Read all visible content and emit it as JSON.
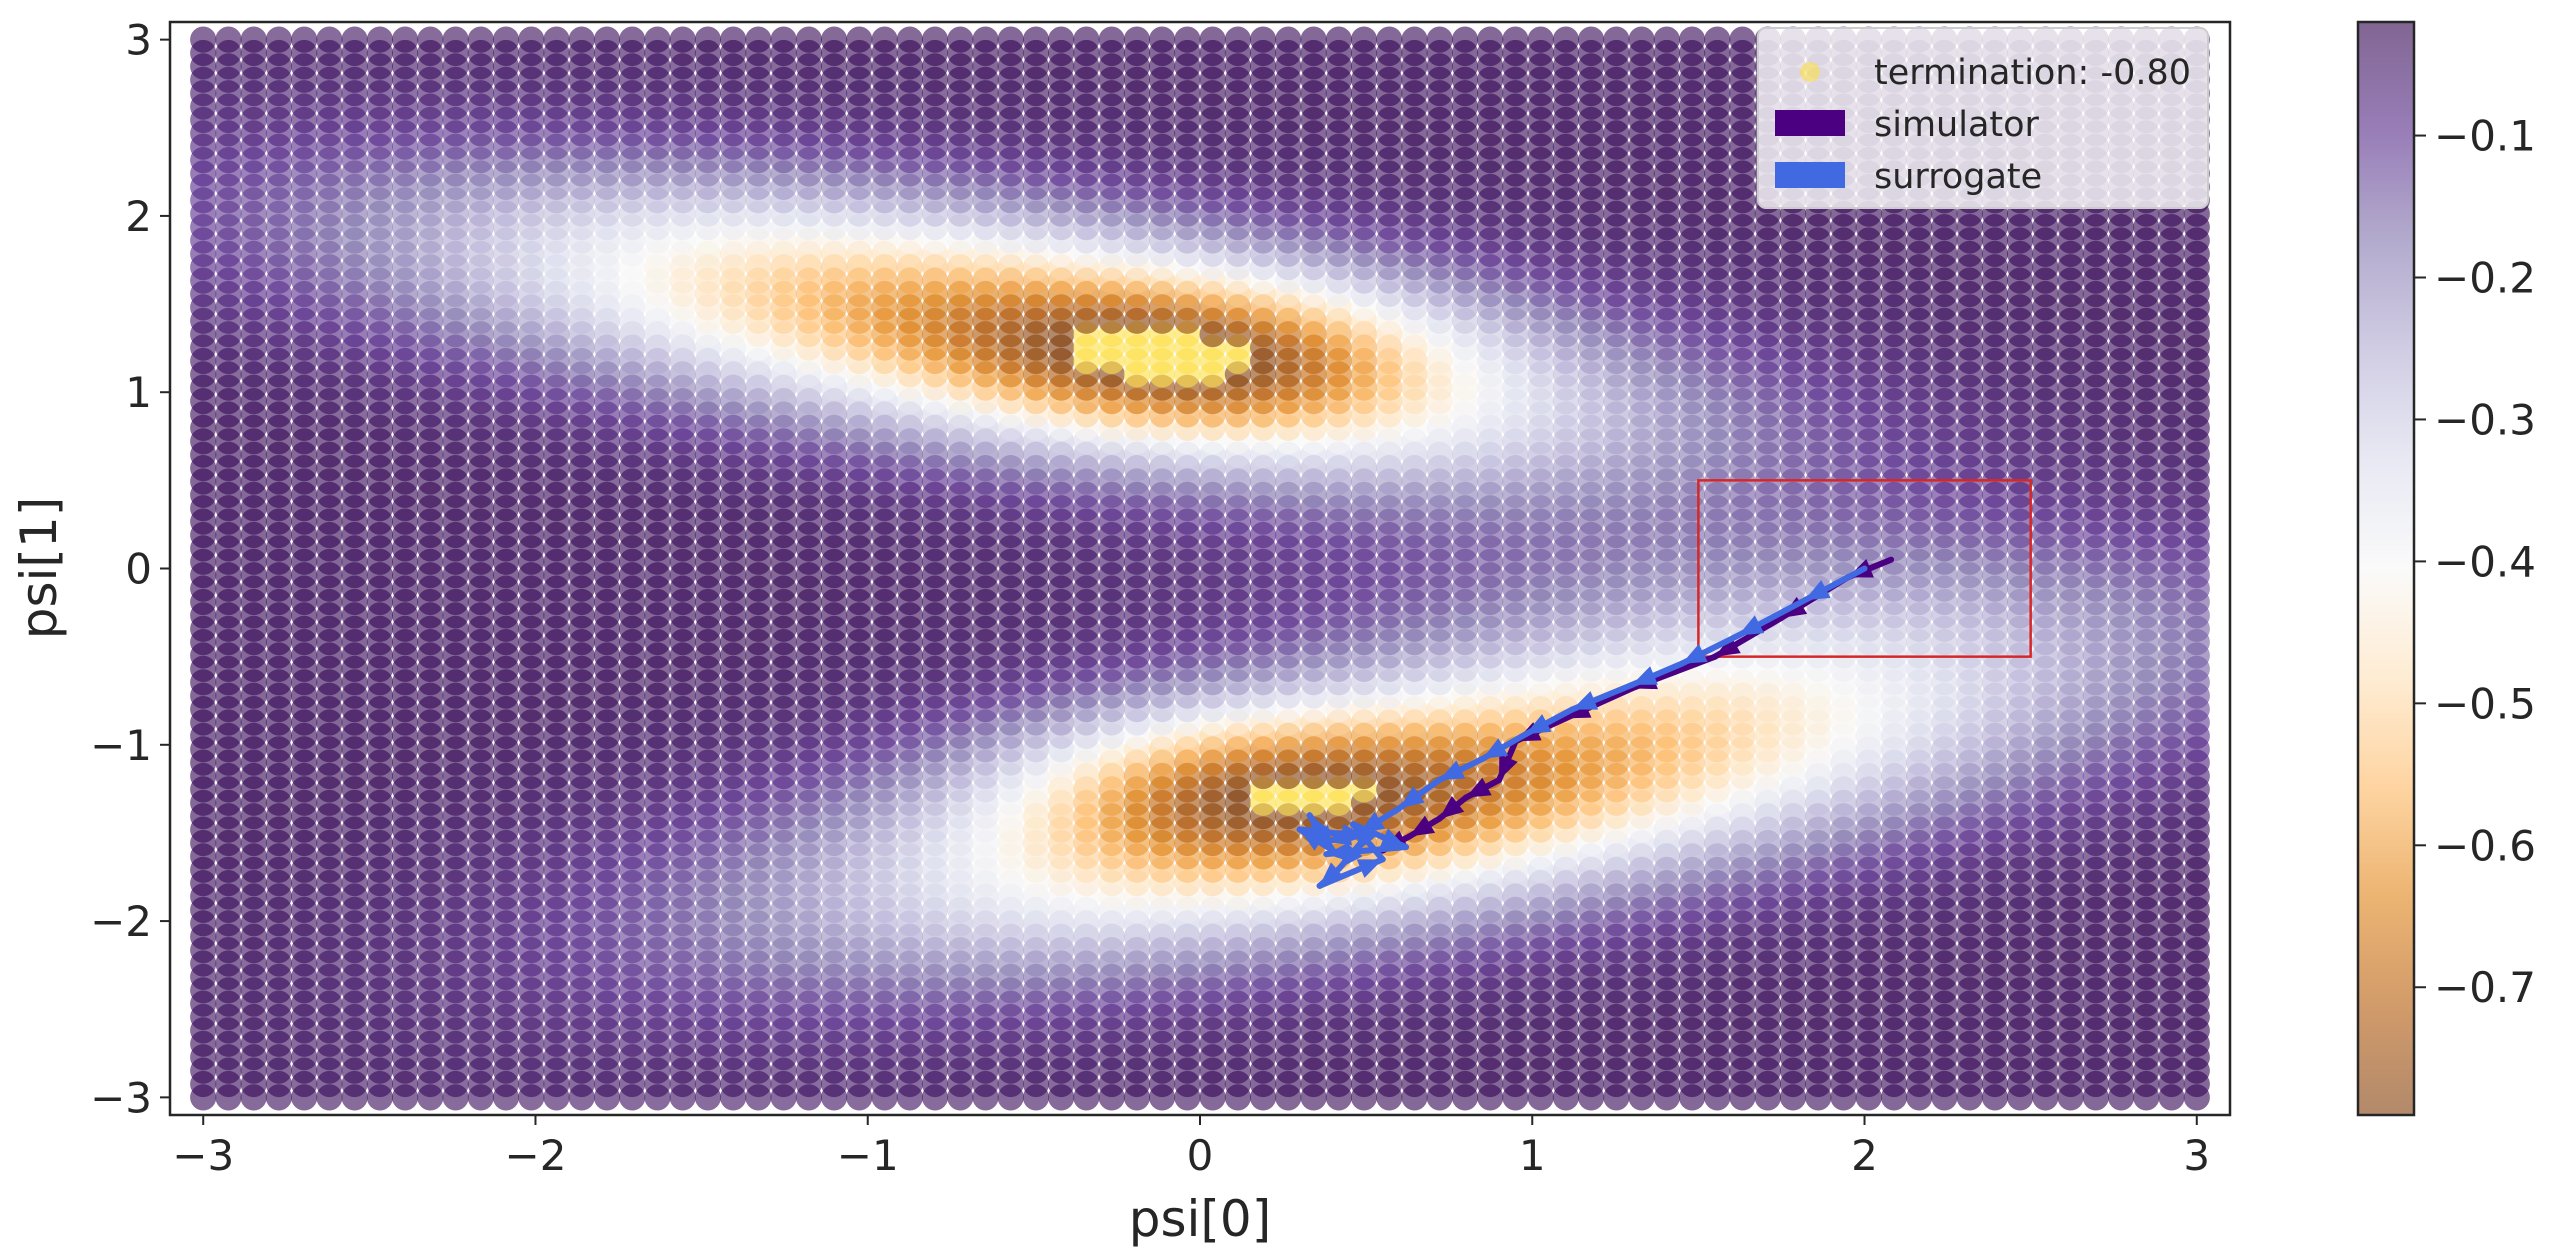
{
  "chart_data": {
    "type": "scatter",
    "title": "",
    "xlabel": "psi[0]",
    "ylabel": "psi[1]",
    "xlim": [
      -3.1,
      3.1
    ],
    "ylim": [
      -3.1,
      3.1
    ],
    "x_ticks": [
      -3,
      -2,
      -1,
      0,
      1,
      2,
      3
    ],
    "y_ticks": [
      -3,
      -2,
      -1,
      0,
      1,
      2,
      3
    ],
    "x_tick_labels": [
      "−3",
      "−2",
      "−1",
      "0",
      "1",
      "2",
      "3"
    ],
    "y_tick_labels": [
      "−3",
      "−2",
      "−1",
      "0",
      "1",
      "2",
      "3"
    ],
    "grid": false,
    "field": {
      "grid_x_range": [
        -3,
        3
      ],
      "grid_y_range": [
        -3,
        3
      ],
      "grid_points": 80,
      "alpha": 0.6,
      "value_range": [
        -0.79,
        -0.02
      ],
      "termination_value": -0.8
    },
    "colormap": [
      "#2d004b",
      "#542788",
      "#8073ac",
      "#b2abd2",
      "#d8daeb",
      "#f7f7f7",
      "#fee0b6",
      "#fdb863",
      "#e08214",
      "#b35806",
      "#7f3b08"
    ],
    "termination_color": "#fde047",
    "colorbar": {
      "ticks": [
        -0.1,
        -0.2,
        -0.3,
        -0.4,
        -0.5,
        -0.6,
        -0.7
      ],
      "tick_labels": [
        "−0.1",
        "−0.2",
        "−0.3",
        "−0.4",
        "−0.5",
        "−0.6",
        "−0.7"
      ],
      "range": [
        -0.79,
        -0.02
      ]
    },
    "legend": {
      "placement": "top-right",
      "entries": [
        {
          "label": "termination: -0.80",
          "marker": "dot",
          "color": "#fde047"
        },
        {
          "label": "simulator",
          "marker": "patch",
          "color": "#4b0082"
        },
        {
          "label": "surrogate",
          "marker": "patch",
          "color": "#4169e1"
        }
      ]
    },
    "target_box": {
      "x": [
        1.5,
        2.5
      ],
      "y": [
        -0.5,
        0.5
      ],
      "color": "#d62728"
    },
    "series": [
      {
        "name": "simulator",
        "color": "#4b0082",
        "points": [
          [
            2.08,
            0.05
          ],
          [
            1.95,
            -0.05
          ],
          [
            1.75,
            -0.28
          ],
          [
            1.55,
            -0.5
          ],
          [
            1.3,
            -0.68
          ],
          [
            1.1,
            -0.85
          ],
          [
            0.95,
            -0.98
          ],
          [
            0.9,
            -1.2
          ],
          [
            0.8,
            -1.3
          ],
          [
            0.72,
            -1.42
          ],
          [
            0.63,
            -1.52
          ],
          [
            0.55,
            -1.6
          ]
        ]
      },
      {
        "name": "surrogate",
        "color": "#4169e1",
        "points": [
          [
            2.0,
            0.0
          ],
          [
            1.82,
            -0.18
          ],
          [
            1.62,
            -0.38
          ],
          [
            1.45,
            -0.54
          ],
          [
            1.3,
            -0.66
          ],
          [
            1.12,
            -0.8
          ],
          [
            0.98,
            -0.94
          ],
          [
            0.85,
            -1.08
          ],
          [
            0.72,
            -1.2
          ],
          [
            0.6,
            -1.36
          ],
          [
            0.48,
            -1.5
          ],
          [
            0.38,
            -1.55
          ],
          [
            0.33,
            -1.4
          ],
          [
            0.4,
            -1.6
          ],
          [
            0.3,
            -1.48
          ],
          [
            0.5,
            -1.52
          ],
          [
            0.42,
            -1.7
          ],
          [
            0.36,
            -1.8
          ],
          [
            0.55,
            -1.65
          ],
          [
            0.46,
            -1.45
          ],
          [
            0.62,
            -1.58
          ],
          [
            0.38,
            -1.62
          ]
        ]
      }
    ]
  }
}
